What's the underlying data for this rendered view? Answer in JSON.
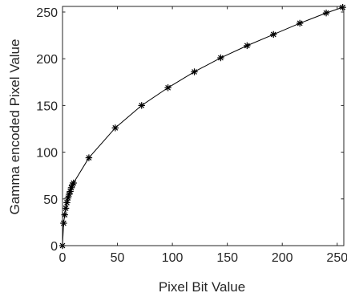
{
  "chart_data": {
    "type": "line",
    "title": "",
    "xlabel": "Pixel Bit Value",
    "ylabel": "Gamma encoded Pixel Value",
    "xlim": [
      0,
      256
    ],
    "ylim": [
      0,
      256
    ],
    "xticks": [
      "0",
      "50",
      "100",
      "150",
      "200",
      "250"
    ],
    "yticks": [
      "0",
      "50",
      "100",
      "150",
      "200",
      "250"
    ],
    "grid": false,
    "box": true,
    "series": [
      {
        "marker": "asterisk",
        "color": "#000000",
        "x": [
          0,
          1,
          2,
          3,
          4,
          5,
          6,
          7,
          8,
          9,
          10,
          24,
          48,
          72,
          96,
          120,
          144,
          168,
          192,
          216,
          240,
          255
        ],
        "y": [
          0,
          24,
          33,
          40,
          46,
          51,
          55,
          58,
          62,
          65,
          67,
          94,
          126,
          150,
          169,
          186,
          201,
          214,
          226,
          238,
          249,
          255
        ]
      }
    ]
  }
}
